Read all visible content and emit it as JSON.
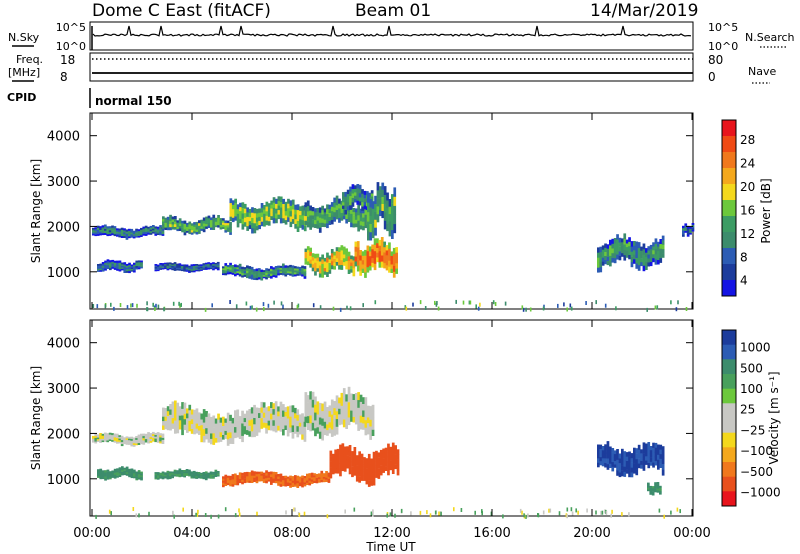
{
  "header": {
    "station": "Dome C East (fitACF)",
    "beam": "Beam 01",
    "date": "14/Mar/2019"
  },
  "summary_panels": {
    "nsky_label": "N.Sky",
    "nsearch_label": "N.Search",
    "freq_label_1": "Freq.",
    "freq_label_2": "[MHz]",
    "nave_label": "Nave",
    "cpid_label": "CPID",
    "cpid_value": "normal 150",
    "nsky_ticks": [
      "10^5",
      "10^0"
    ],
    "nsearch_ticks": [
      "10^5",
      "10^0"
    ],
    "freq_ticks": [
      "18",
      "8"
    ],
    "nave_ticks": [
      "80",
      "0"
    ]
  },
  "axes": {
    "time_ticks": [
      "00:00",
      "04:00",
      "08:00",
      "12:00",
      "16:00",
      "20:00",
      "00:00"
    ],
    "xlabel": "Time UT",
    "ylabel": "Slant Range [km]",
    "range_ticks": [
      "4000",
      "3000",
      "2000",
      "1000"
    ]
  },
  "power_scale": {
    "label": "Power [dB]",
    "ticks": [
      "28",
      "24",
      "20",
      "16",
      "12",
      "8",
      "4"
    ],
    "colors": [
      "#e8141c",
      "#f04a14",
      "#f0781c",
      "#f4a81c",
      "#f4d81c",
      "#6cc83c",
      "#3c9c64",
      "#3c8c6c",
      "#2c5cb4",
      "#1c3c9c",
      "#1414e4"
    ]
  },
  "velocity_scale": {
    "label": "Velocity [m s⁻¹]",
    "ticks": [
      "1000",
      "500",
      "100",
      "25",
      "−25",
      "−100",
      "−500",
      "−1000"
    ],
    "colors": [
      "#1c3c9c",
      "#2c5cb4",
      "#3c8c6c",
      "#48a05c",
      "#6cc83c",
      "#c8c8c4",
      "#c8c8c4",
      "#f4d81c",
      "#f4a81c",
      "#f0781c",
      "#e8501c",
      "#e8141c"
    ]
  },
  "chart_data": {
    "type": "heatmap",
    "x_range": [
      "00:00",
      "24:00"
    ],
    "y_range_km": [
      180,
      4500
    ],
    "power_regions": [
      {
        "t": [
          0.0,
          2.8
        ],
        "r": [
          1750,
          2000
        ],
        "power_db": 10
      },
      {
        "t": [
          2.8,
          5.5
        ],
        "r": [
          1850,
          2200
        ],
        "power_db": 14
      },
      {
        "t": [
          5.5,
          8.5
        ],
        "r": [
          1950,
          2600
        ],
        "power_db": 16
      },
      {
        "t": [
          8.5,
          11.0
        ],
        "r": [
          1950,
          2600
        ],
        "power_db": 14
      },
      {
        "t": [
          10.0,
          11.2
        ],
        "r": [
          2350,
          2900
        ],
        "power_db": 12
      },
      {
        "t": [
          0.2,
          2.0
        ],
        "r": [
          1000,
          1250
        ],
        "power_db": 10
      },
      {
        "t": [
          2.5,
          5.0
        ],
        "r": [
          1000,
          1200
        ],
        "power_db": 8
      },
      {
        "t": [
          5.2,
          8.5
        ],
        "r": [
          850,
          1150
        ],
        "power_db": 12
      },
      {
        "t": [
          8.5,
          10.5
        ],
        "r": [
          950,
          1500
        ],
        "power_db": 20
      },
      {
        "t": [
          10.5,
          12.2
        ],
        "r": [
          950,
          1700
        ],
        "power_db": 24
      },
      {
        "t": [
          11.0,
          12.1
        ],
        "r": [
          1800,
          2900
        ],
        "power_db": 14
      },
      {
        "t": [
          20.2,
          22.8
        ],
        "r": [
          1100,
          1750
        ],
        "power_db": 12
      },
      {
        "t": [
          23.6,
          24.0
        ],
        "r": [
          1800,
          2050
        ],
        "power_db": 8
      }
    ],
    "velocity_regions": [
      {
        "t": [
          0.0,
          2.8
        ],
        "r": [
          1750,
          2000
        ],
        "velocity": 0
      },
      {
        "t": [
          2.8,
          8.5
        ],
        "r": [
          1850,
          2600
        ],
        "velocity": 0
      },
      {
        "t": [
          8.5,
          11.2
        ],
        "r": [
          1950,
          2900
        ],
        "velocity": 0
      },
      {
        "t": [
          0.2,
          2.0
        ],
        "r": [
          1000,
          1250
        ],
        "velocity": 120
      },
      {
        "t": [
          2.5,
          5.0
        ],
        "r": [
          1000,
          1200
        ],
        "velocity": 120
      },
      {
        "t": [
          5.2,
          9.5
        ],
        "r": [
          850,
          1150
        ],
        "velocity": -300
      },
      {
        "t": [
          9.5,
          12.2
        ],
        "r": [
          950,
          1700
        ],
        "velocity": -500
      },
      {
        "t": [
          20.2,
          22.8
        ],
        "r": [
          1100,
          1750
        ],
        "velocity": 700
      },
      {
        "t": [
          22.2,
          22.7
        ],
        "r": [
          650,
          900
        ],
        "velocity": 120
      }
    ]
  }
}
